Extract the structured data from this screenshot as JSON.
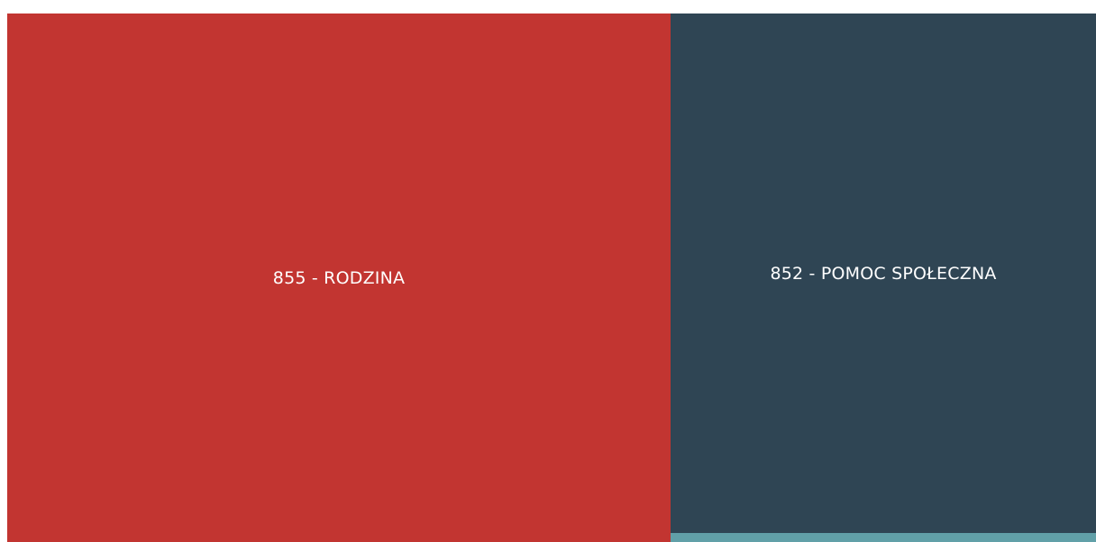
{
  "tiles": [
    {
      "label": "855 - RODZINA",
      "color": "#c23531"
    },
    {
      "label": "852 - POMOC SPOŁECZNA",
      "color": "#2f4554"
    },
    {
      "color": "#61a0a8"
    }
  ]
}
